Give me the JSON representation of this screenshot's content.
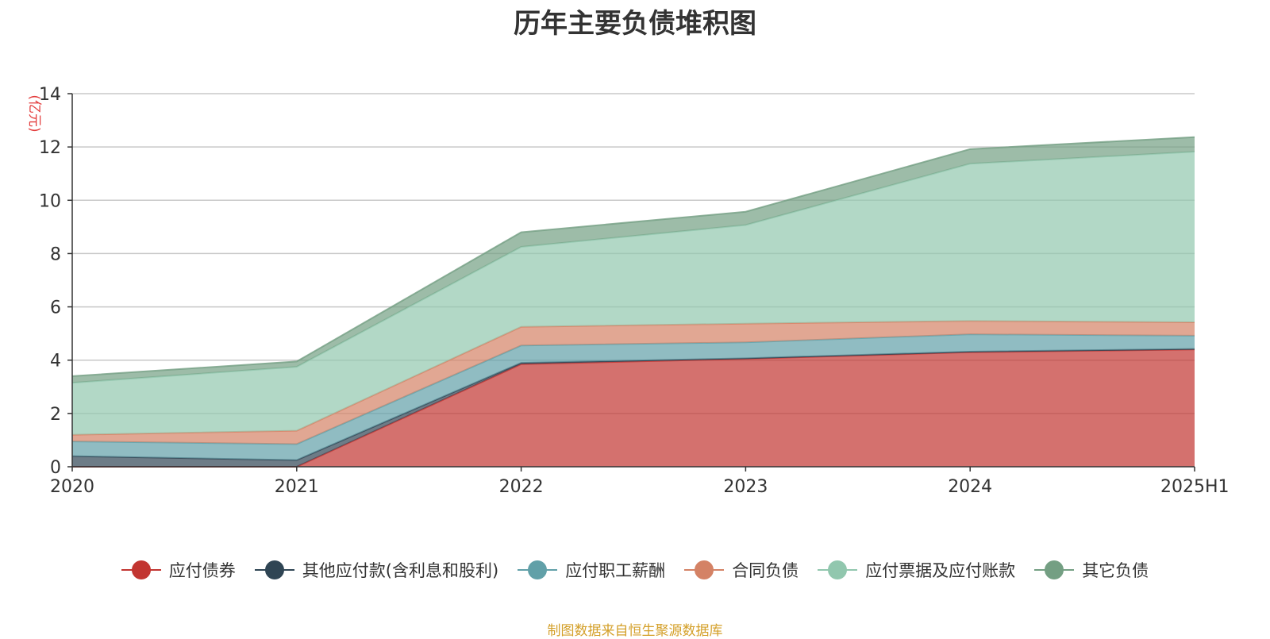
{
  "chart_data": {
    "type": "area",
    "stacked": true,
    "title": "历年主要负债堆积图",
    "ylabel": "(亿元)",
    "xlabel": "",
    "categories": [
      "2020",
      "2021",
      "2022",
      "2023",
      "2024",
      "2025H1"
    ],
    "ylim": [
      0,
      14
    ],
    "yticks": [
      0,
      2,
      4,
      6,
      8,
      10,
      12,
      14
    ],
    "grid": true,
    "legend_position": "bottom",
    "series": [
      {
        "name": "应付债券",
        "color": "#c23531",
        "values": [
          0,
          0,
          3.85,
          4.05,
          4.3,
          4.4
        ]
      },
      {
        "name": "其他应付款(含利息和股利)",
        "color": "#2f4554",
        "values": [
          0.4,
          0.25,
          0.05,
          0.02,
          0.02,
          0.02
        ]
      },
      {
        "name": "应付职工薪酬",
        "color": "#61a0a8",
        "values": [
          0.55,
          0.6,
          0.65,
          0.6,
          0.65,
          0.5
        ]
      },
      {
        "name": "合同负债",
        "color": "#d48265",
        "values": [
          0.25,
          0.5,
          0.7,
          0.7,
          0.5,
          0.5
        ]
      },
      {
        "name": "应付票据及应付账款",
        "color": "#91c7ae",
        "values": [
          1.95,
          2.4,
          3.0,
          3.7,
          5.9,
          6.4
        ]
      },
      {
        "name": "其它负债",
        "color": "#749f83",
        "values": [
          0.25,
          0.2,
          0.55,
          0.5,
          0.55,
          0.55
        ]
      }
    ]
  },
  "source_note": "制图数据来自恒生聚源数据库"
}
